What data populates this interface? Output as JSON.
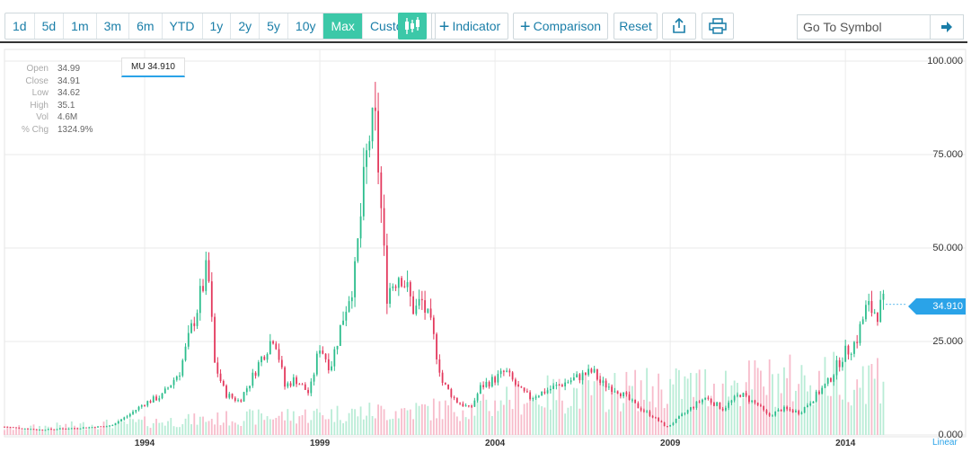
{
  "toolbar": {
    "ranges": [
      "1d",
      "5d",
      "1m",
      "3m",
      "6m",
      "YTD",
      "1y",
      "2y",
      "5y",
      "10y",
      "Max"
    ],
    "active_range": "Max",
    "custom_label": "Custom",
    "indicator_label": "Indicator",
    "comparison_label": "Comparison",
    "reset_label": "Reset",
    "symbol_placeholder": "Go To Symbol"
  },
  "info_panel": {
    "rows": [
      {
        "label": "Open",
        "value": "34.99"
      },
      {
        "label": "Close",
        "value": "34.91"
      },
      {
        "label": "Low",
        "value": "34.62"
      },
      {
        "label": "High",
        "value": "35.1"
      },
      {
        "label": "Vol",
        "value": "4.6M"
      },
      {
        "label": "% Chg",
        "value": "1324.9%"
      }
    ]
  },
  "series_label": "MU 34.910",
  "current_price": "34.910",
  "scale_label": "Linear",
  "colors": {
    "up": "#2bbd8c",
    "down": "#e3395d",
    "up_volume": "#b9ecd6",
    "down_volume": "#f7bccb",
    "accent": "#3cc8a8",
    "price_tag": "#2aa3e8"
  },
  "chart_data": {
    "type": "candlestick",
    "symbol": "MU",
    "interval": "monthly",
    "y_ticks": [
      "100.000",
      "75.000",
      "50.000",
      "25.000",
      "0.000"
    ],
    "ylim": [
      0,
      100
    ],
    "x_ticks": [
      "1994",
      "1999",
      "2004",
      "2009",
      "2014"
    ],
    "xlim": [
      1990.0,
      2015.2
    ],
    "grid": true,
    "close_path": [
      [
        1990.0,
        2.2
      ],
      [
        1991.0,
        1.4
      ],
      [
        1992.0,
        1.8
      ],
      [
        1993.0,
        2.4
      ],
      [
        1993.5,
        5.0
      ],
      [
        1994.0,
        8.5
      ],
      [
        1994.5,
        10.5
      ],
      [
        1995.0,
        17
      ],
      [
        1995.5,
        34
      ],
      [
        1995.8,
        45
      ],
      [
        1996.0,
        19
      ],
      [
        1996.3,
        11
      ],
      [
        1996.7,
        9
      ],
      [
        1997.0,
        14
      ],
      [
        1997.3,
        20
      ],
      [
        1997.7,
        27
      ],
      [
        1998.0,
        13
      ],
      [
        1998.3,
        15
      ],
      [
        1998.7,
        11
      ],
      [
        1999.0,
        24
      ],
      [
        1999.3,
        18
      ],
      [
        1999.7,
        33
      ],
      [
        2000.0,
        43
      ],
      [
        2000.4,
        80
      ],
      [
        2000.6,
        82
      ],
      [
        2000.9,
        38
      ],
      [
        2001.3,
        44
      ],
      [
        2001.7,
        33
      ],
      [
        2001.9,
        36
      ],
      [
        2002.2,
        28
      ],
      [
        2002.5,
        14
      ],
      [
        2002.9,
        9
      ],
      [
        2003.3,
        7
      ],
      [
        2003.6,
        13
      ],
      [
        2004.0,
        15
      ],
      [
        2004.3,
        17
      ],
      [
        2004.7,
        12
      ],
      [
        2005.0,
        10
      ],
      [
        2005.5,
        12
      ],
      [
        2006.0,
        14
      ],
      [
        2006.5,
        16
      ],
      [
        2006.8,
        17
      ],
      [
        2007.0,
        14
      ],
      [
        2007.5,
        12
      ],
      [
        2008.0,
        8
      ],
      [
        2008.5,
        5
      ],
      [
        2008.9,
        2
      ],
      [
        2009.3,
        5
      ],
      [
        2009.7,
        8
      ],
      [
        2010.0,
        10
      ],
      [
        2010.5,
        7
      ],
      [
        2011.0,
        11
      ],
      [
        2011.5,
        8
      ],
      [
        2011.8,
        5
      ],
      [
        2012.2,
        7
      ],
      [
        2012.7,
        6
      ],
      [
        2013.0,
        9
      ],
      [
        2013.5,
        14
      ],
      [
        2013.9,
        21
      ],
      [
        2014.3,
        25
      ],
      [
        2014.6,
        34
      ],
      [
        2014.9,
        33
      ],
      [
        2015.1,
        34.9
      ]
    ]
  }
}
